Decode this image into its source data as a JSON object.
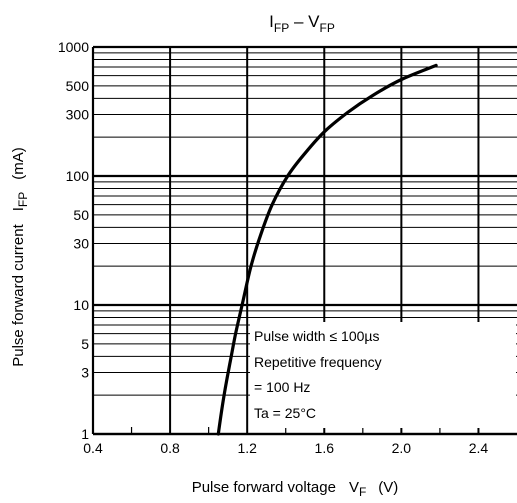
{
  "chart_data": {
    "type": "line",
    "title": {
      "main": "I",
      "main_sub": "FP",
      "sep": " – V",
      "sep_sub": "FP"
    },
    "xlabel": {
      "text": "Pulse forward voltage",
      "symbol": "V",
      "symbol_sub": "F",
      "unit": "(V)"
    },
    "ylabel": {
      "text": "Pulse forward current",
      "symbol": "I",
      "symbol_sub": "FP",
      "unit": "(mA)"
    },
    "x_axis": {
      "min": 0.4,
      "max": 2.6,
      "ticks": [
        0.4,
        0.8,
        1.2,
        1.6,
        2.0,
        2.4
      ],
      "tick_labels": [
        "0.4",
        "0.8",
        "1.2",
        "1.6",
        "2.0",
        "2.4"
      ],
      "minor": [
        0.6,
        1.0,
        1.4,
        1.8,
        2.2
      ],
      "scale": "linear"
    },
    "y_axis": {
      "min": 1,
      "max": 1000,
      "scale": "log",
      "tick_values": [
        1,
        3,
        5,
        10,
        30,
        50,
        100,
        300,
        500,
        1000
      ],
      "tick_labels": [
        "1",
        "3",
        "5",
        "10",
        "30",
        "50",
        "100",
        "300",
        "500",
        "1000"
      ],
      "grid": [
        1,
        2,
        3,
        4,
        5,
        6,
        7,
        8,
        9,
        10,
        20,
        30,
        40,
        50,
        60,
        70,
        80,
        90,
        100,
        200,
        300,
        400,
        500,
        600,
        700,
        800,
        900,
        1000
      ],
      "heavy": [
        1,
        10,
        100,
        1000
      ]
    },
    "grid": true,
    "series": [
      {
        "x": [
          1.05,
          1.08,
          1.11,
          1.14,
          1.18,
          1.22,
          1.27,
          1.33,
          1.41,
          1.5,
          1.6,
          1.72,
          1.85,
          2.0,
          2.18
        ],
        "y": [
          1,
          2,
          3.5,
          6,
          11,
          20,
          35,
          60,
          100,
          150,
          220,
          310,
          420,
          560,
          720
        ]
      }
    ],
    "annotation": [
      "Pulse width ≤ 100µs",
      "Repetitive frequency",
      "= 100 Hz",
      "Ta = 25°C"
    ]
  }
}
